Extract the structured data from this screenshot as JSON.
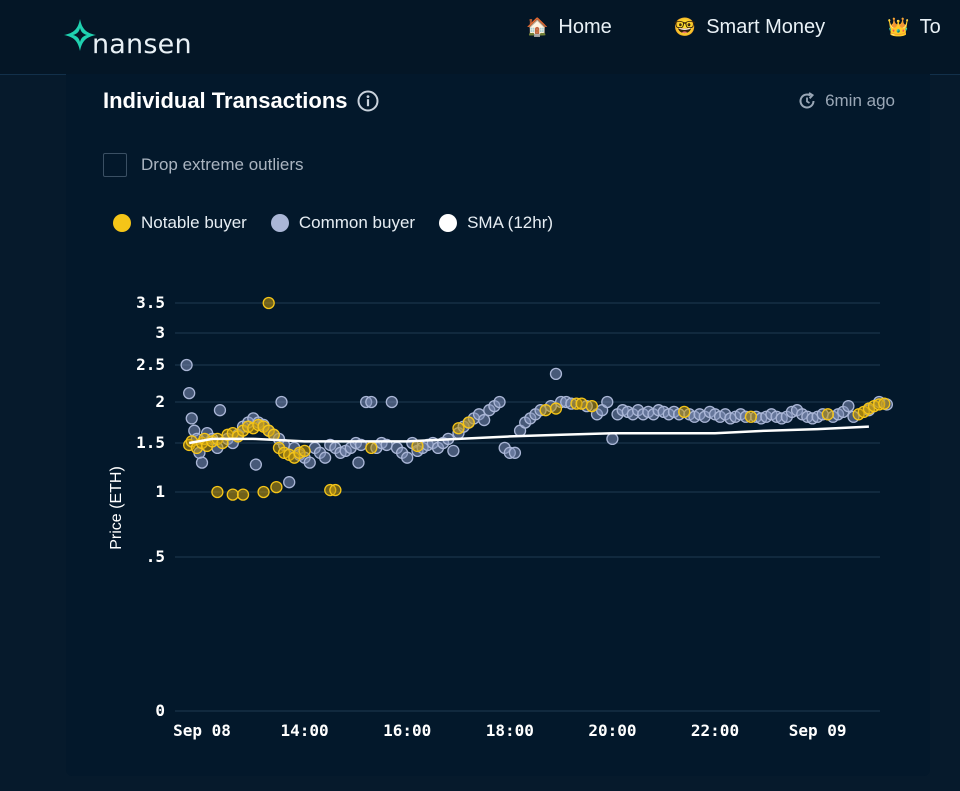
{
  "brand": {
    "name": "nansen",
    "accent": "#1fd1b0"
  },
  "nav": [
    {
      "icon": "house-emoji",
      "glyph": "🏠",
      "label": "Home"
    },
    {
      "icon": "nerd-face-emoji",
      "glyph": "🤓",
      "label": "Smart Money"
    },
    {
      "icon": "crown-emoji",
      "glyph": "👑",
      "label": "To"
    }
  ],
  "card": {
    "title": "Individual Transactions",
    "updated": "6min ago",
    "outlier_label": "Drop extreme outliers"
  },
  "legend": [
    {
      "label": "Notable buyer",
      "color": "#f5c518"
    },
    {
      "label": "Common buyer",
      "color": "#aab6d6"
    },
    {
      "label": "SMA (12hr)",
      "color": "#ffffff"
    }
  ],
  "chart_data": {
    "type": "scatter",
    "ylabel": "Price (ETH)",
    "y_ticks": [
      {
        "value": 0,
        "label": "0"
      },
      {
        "value": 0.5,
        "label": ".5"
      },
      {
        "value": 1,
        "label": "1"
      },
      {
        "value": 1.5,
        "label": "1.5"
      },
      {
        "value": 2,
        "label": "2"
      },
      {
        "value": 2.5,
        "label": "2.5"
      },
      {
        "value": 3,
        "label": "3"
      },
      {
        "value": 3.5,
        "label": "3.5"
      }
    ],
    "x_range_hours": [
      11.6,
      25.4
    ],
    "x_ticks": [
      {
        "hour": 12,
        "label": "Sep 08"
      },
      {
        "hour": 14,
        "label": "14:00"
      },
      {
        "hour": 16,
        "label": "16:00"
      },
      {
        "hour": 18,
        "label": "18:00"
      },
      {
        "hour": 20,
        "label": "20:00"
      },
      {
        "hour": 22,
        "label": "22:00"
      },
      {
        "hour": 24,
        "label": "Sep 09"
      }
    ],
    "notable_buyers": [
      [
        11.75,
        1.48
      ],
      [
        11.8,
        1.52
      ],
      [
        11.9,
        1.45
      ],
      [
        12.0,
        1.5
      ],
      [
        12.05,
        1.55
      ],
      [
        12.1,
        1.47
      ],
      [
        12.2,
        1.52
      ],
      [
        12.3,
        1.55
      ],
      [
        12.4,
        1.5
      ],
      [
        12.5,
        1.6
      ],
      [
        12.6,
        1.62
      ],
      [
        12.7,
        1.58
      ],
      [
        12.8,
        1.65
      ],
      [
        12.9,
        1.7
      ],
      [
        13.0,
        1.68
      ],
      [
        13.1,
        1.72
      ],
      [
        13.2,
        1.7
      ],
      [
        13.3,
        1.65
      ],
      [
        13.4,
        1.6
      ],
      [
        13.5,
        1.45
      ],
      [
        13.6,
        1.4
      ],
      [
        13.7,
        1.38
      ],
      [
        13.8,
        1.35
      ],
      [
        13.9,
        1.4
      ],
      [
        14.0,
        1.42
      ],
      [
        12.3,
        1.0
      ],
      [
        12.6,
        0.98
      ],
      [
        12.8,
        0.98
      ],
      [
        13.2,
        1.0
      ],
      [
        13.45,
        1.05
      ],
      [
        14.5,
        1.02
      ],
      [
        14.6,
        1.02
      ],
      [
        13.3,
        3.5
      ],
      [
        15.3,
        1.45
      ],
      [
        16.2,
        1.47
      ],
      [
        17.0,
        1.68
      ],
      [
        17.2,
        1.75
      ],
      [
        18.7,
        1.9
      ],
      [
        18.9,
        1.92
      ],
      [
        19.3,
        1.98
      ],
      [
        19.4,
        1.98
      ],
      [
        19.6,
        1.95
      ],
      [
        21.4,
        1.88
      ],
      [
        22.7,
        1.82
      ],
      [
        24.2,
        1.85
      ],
      [
        24.8,
        1.85
      ],
      [
        24.9,
        1.88
      ],
      [
        25.0,
        1.92
      ],
      [
        25.1,
        1.95
      ],
      [
        25.2,
        1.97
      ],
      [
        25.3,
        1.98
      ]
    ],
    "common_buyers": [
      [
        11.7,
        2.5
      ],
      [
        11.75,
        2.12
      ],
      [
        11.8,
        1.8
      ],
      [
        11.85,
        1.65
      ],
      [
        11.9,
        1.55
      ],
      [
        11.95,
        1.4
      ],
      [
        12.0,
        1.3
      ],
      [
        12.1,
        1.62
      ],
      [
        12.2,
        1.55
      ],
      [
        12.3,
        1.45
      ],
      [
        12.35,
        1.9
      ],
      [
        12.5,
        1.55
      ],
      [
        12.6,
        1.5
      ],
      [
        12.7,
        1.6
      ],
      [
        12.8,
        1.7
      ],
      [
        12.9,
        1.75
      ],
      [
        13.0,
        1.8
      ],
      [
        13.05,
        1.28
      ],
      [
        13.1,
        1.75
      ],
      [
        13.2,
        1.72
      ],
      [
        13.3,
        1.65
      ],
      [
        13.4,
        1.6
      ],
      [
        13.5,
        1.55
      ],
      [
        13.55,
        2.0
      ],
      [
        13.6,
        1.48
      ],
      [
        13.7,
        1.1
      ],
      [
        13.8,
        1.45
      ],
      [
        13.9,
        1.38
      ],
      [
        14.0,
        1.35
      ],
      [
        14.1,
        1.3
      ],
      [
        14.2,
        1.45
      ],
      [
        14.3,
        1.4
      ],
      [
        14.4,
        1.35
      ],
      [
        14.5,
        1.48
      ],
      [
        14.6,
        1.45
      ],
      [
        14.7,
        1.4
      ],
      [
        14.8,
        1.42
      ],
      [
        14.9,
        1.45
      ],
      [
        15.0,
        1.5
      ],
      [
        15.05,
        1.3
      ],
      [
        15.1,
        1.48
      ],
      [
        15.2,
        2.0
      ],
      [
        15.3,
        2.0
      ],
      [
        15.4,
        1.45
      ],
      [
        15.5,
        1.5
      ],
      [
        15.6,
        1.48
      ],
      [
        15.7,
        2.0
      ],
      [
        15.8,
        1.45
      ],
      [
        15.9,
        1.4
      ],
      [
        16.0,
        1.35
      ],
      [
        16.1,
        1.5
      ],
      [
        16.2,
        1.42
      ],
      [
        16.3,
        1.45
      ],
      [
        16.4,
        1.48
      ],
      [
        16.5,
        1.5
      ],
      [
        16.6,
        1.45
      ],
      [
        16.7,
        1.5
      ],
      [
        16.8,
        1.55
      ],
      [
        16.9,
        1.42
      ],
      [
        17.0,
        1.62
      ],
      [
        17.1,
        1.7
      ],
      [
        17.2,
        1.75
      ],
      [
        17.3,
        1.8
      ],
      [
        17.4,
        1.85
      ],
      [
        17.5,
        1.78
      ],
      [
        17.6,
        1.9
      ],
      [
        17.7,
        1.95
      ],
      [
        17.8,
        2.0
      ],
      [
        17.9,
        1.45
      ],
      [
        18.0,
        1.4
      ],
      [
        18.1,
        1.4
      ],
      [
        18.2,
        1.65
      ],
      [
        18.3,
        1.75
      ],
      [
        18.4,
        1.8
      ],
      [
        18.5,
        1.85
      ],
      [
        18.6,
        1.9
      ],
      [
        18.8,
        1.95
      ],
      [
        18.9,
        2.38
      ],
      [
        19.0,
        2.0
      ],
      [
        19.1,
        2.0
      ],
      [
        19.2,
        1.98
      ],
      [
        19.5,
        1.95
      ],
      [
        19.7,
        1.85
      ],
      [
        19.8,
        1.9
      ],
      [
        19.9,
        2.0
      ],
      [
        20.0,
        1.55
      ],
      [
        20.1,
        1.85
      ],
      [
        20.2,
        1.9
      ],
      [
        20.3,
        1.88
      ],
      [
        20.4,
        1.85
      ],
      [
        20.5,
        1.9
      ],
      [
        20.6,
        1.85
      ],
      [
        20.7,
        1.88
      ],
      [
        20.8,
        1.85
      ],
      [
        20.9,
        1.9
      ],
      [
        21.0,
        1.88
      ],
      [
        21.1,
        1.85
      ],
      [
        21.2,
        1.88
      ],
      [
        21.3,
        1.85
      ],
      [
        21.5,
        1.85
      ],
      [
        21.6,
        1.82
      ],
      [
        21.7,
        1.85
      ],
      [
        21.8,
        1.82
      ],
      [
        21.9,
        1.88
      ],
      [
        22.0,
        1.85
      ],
      [
        22.1,
        1.82
      ],
      [
        22.2,
        1.85
      ],
      [
        22.3,
        1.8
      ],
      [
        22.4,
        1.82
      ],
      [
        22.5,
        1.85
      ],
      [
        22.6,
        1.82
      ],
      [
        22.8,
        1.82
      ],
      [
        22.9,
        1.8
      ],
      [
        23.0,
        1.82
      ],
      [
        23.1,
        1.85
      ],
      [
        23.2,
        1.82
      ],
      [
        23.3,
        1.8
      ],
      [
        23.4,
        1.82
      ],
      [
        23.5,
        1.88
      ],
      [
        23.6,
        1.9
      ],
      [
        23.7,
        1.85
      ],
      [
        23.8,
        1.82
      ],
      [
        23.9,
        1.8
      ],
      [
        24.0,
        1.82
      ],
      [
        24.1,
        1.85
      ],
      [
        24.3,
        1.82
      ],
      [
        24.4,
        1.85
      ],
      [
        24.5,
        1.88
      ],
      [
        24.6,
        1.95
      ],
      [
        24.7,
        1.82
      ],
      [
        25.0,
        1.9
      ],
      [
        25.2,
        2.0
      ],
      [
        25.35,
        1.97
      ]
    ],
    "sma": [
      [
        11.75,
        1.5
      ],
      [
        12.2,
        1.55
      ],
      [
        13.0,
        1.55
      ],
      [
        14.0,
        1.52
      ],
      [
        15.0,
        1.52
      ],
      [
        16.0,
        1.52
      ],
      [
        17.0,
        1.55
      ],
      [
        18.0,
        1.58
      ],
      [
        19.0,
        1.6
      ],
      [
        20.0,
        1.62
      ],
      [
        21.0,
        1.62
      ],
      [
        22.0,
        1.62
      ],
      [
        23.0,
        1.65
      ],
      [
        24.0,
        1.67
      ],
      [
        25.0,
        1.7
      ]
    ]
  }
}
